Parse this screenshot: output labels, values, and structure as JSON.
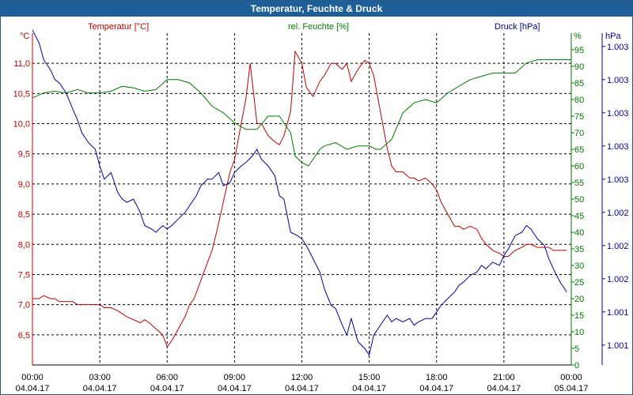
{
  "window": {
    "title": "Temperatur, Feuchte & Druck"
  },
  "colors": {
    "titlebar": "#1f5f99",
    "temperature": "#c00000",
    "humidity": "#007a00",
    "pressure": "#000099",
    "grid": "#000000"
  },
  "chart_data": {
    "type": "line",
    "title": "Temperatur, Feuchte & Druck",
    "grid": true,
    "x_labels": [
      {
        "time": "00:00",
        "date": "04.04.17"
      },
      {
        "time": "03:00",
        "date": "04.04.17"
      },
      {
        "time": "06:00",
        "date": "04.04.17"
      },
      {
        "time": "09:00",
        "date": "04.04.17"
      },
      {
        "time": "12:00",
        "date": "04.04.17"
      },
      {
        "time": "15:00",
        "date": "04.04.17"
      },
      {
        "time": "18:00",
        "date": "04.04.17"
      },
      {
        "time": "21:00",
        "date": "04.04.17"
      },
      {
        "time": "00:00",
        "date": "05.04.17"
      }
    ],
    "x_range_hours": [
      0,
      24
    ],
    "axes": {
      "left": {
        "unit": "°C",
        "label": "Temperatur [°C]",
        "range": [
          6.0,
          11.5
        ],
        "ticks": [
          6.5,
          7.0,
          7.5,
          8.0,
          8.5,
          9.0,
          9.5,
          10.0,
          10.5,
          11.0
        ],
        "tick_labels": [
          "6,5",
          "7,0",
          "7,5",
          "8,0",
          "8,5",
          "9,0",
          "9,5",
          "10,0",
          "10,5",
          "11,0"
        ]
      },
      "mid": {
        "unit": "%",
        "label": "rel. Feuchte [%]",
        "range": [
          0,
          100
        ],
        "ticks": [
          0,
          5,
          10,
          15,
          20,
          25,
          30,
          35,
          40,
          45,
          50,
          55,
          60,
          65,
          70,
          75,
          80,
          85,
          90,
          95
        ],
        "tick_labels": [
          "0",
          "5",
          "10",
          "15",
          "20",
          "25",
          "30",
          "35",
          "40",
          "45",
          "50",
          "55",
          "60",
          "65",
          "70",
          "75",
          "80",
          "85",
          "90",
          "95"
        ]
      },
      "right": {
        "unit": "hPa",
        "label": "Druck [hPa]",
        "range": [
          0,
          10
        ],
        "ticks": [
          0.6,
          1.6,
          2.6,
          3.6,
          4.6,
          5.6,
          6.6,
          7.6,
          8.6,
          9.6
        ],
        "tick_labels": [
          "1.001",
          "1.001",
          "1.002",
          "1.002",
          "1.002",
          "1.003",
          "1.003",
          "1.003",
          "1.003",
          "1.003"
        ]
      }
    },
    "series": [
      {
        "name": "Temperatur [°C]",
        "axis": "left",
        "color": "#c00000",
        "x": [
          0.0,
          0.3,
          0.5,
          0.8,
          1.0,
          1.2,
          1.5,
          1.8,
          2.0,
          2.2,
          2.5,
          2.8,
          3.0,
          3.2,
          3.5,
          3.8,
          4.0,
          4.2,
          4.5,
          4.8,
          5.0,
          5.2,
          5.5,
          5.8,
          6.0,
          6.2,
          6.5,
          6.8,
          7.0,
          7.2,
          7.5,
          7.8,
          8.0,
          8.2,
          8.5,
          8.8,
          9.0,
          9.2,
          9.5,
          9.7,
          10.0,
          10.2,
          10.5,
          10.8,
          11.0,
          11.2,
          11.5,
          11.7,
          12.0,
          12.2,
          12.5,
          12.8,
          13.0,
          13.3,
          13.5,
          13.8,
          14.0,
          14.2,
          14.5,
          14.8,
          15.0,
          15.2,
          15.5,
          15.8,
          16.0,
          16.2,
          16.5,
          16.8,
          17.0,
          17.2,
          17.5,
          17.8,
          18.0,
          18.2,
          18.5,
          18.8,
          19.0,
          19.2,
          19.5,
          19.8,
          20.0,
          20.2,
          20.5,
          20.8,
          21.0,
          21.2,
          21.5,
          21.8,
          22.0,
          22.2,
          22.5,
          22.8,
          23.0,
          23.2,
          23.5,
          23.8
        ],
        "y": [
          7.1,
          7.1,
          7.15,
          7.1,
          7.1,
          7.05,
          7.05,
          7.05,
          7.0,
          7.0,
          7.0,
          7.0,
          7.0,
          6.95,
          6.95,
          6.9,
          6.85,
          6.8,
          6.75,
          6.7,
          6.75,
          6.7,
          6.6,
          6.5,
          6.3,
          6.4,
          6.6,
          6.8,
          7.0,
          7.1,
          7.4,
          7.7,
          7.9,
          8.2,
          8.7,
          9.2,
          9.4,
          9.8,
          10.4,
          11.0,
          10.0,
          10.0,
          9.8,
          9.7,
          9.65,
          9.8,
          10.2,
          11.2,
          11.0,
          10.6,
          10.45,
          10.7,
          10.8,
          11.0,
          11.0,
          10.9,
          11.0,
          10.7,
          10.9,
          11.05,
          11.0,
          10.8,
          10.2,
          9.6,
          9.3,
          9.2,
          9.2,
          9.1,
          9.1,
          9.05,
          9.1,
          9.0,
          8.9,
          8.7,
          8.5,
          8.3,
          8.3,
          8.25,
          8.3,
          8.25,
          8.1,
          8.0,
          7.9,
          7.85,
          7.8,
          7.8,
          7.9,
          7.95,
          8.0,
          8.0,
          7.95,
          7.95,
          7.95,
          7.9,
          7.9,
          7.9
        ]
      },
      {
        "name": "rel. Feuchte [%]",
        "axis": "mid",
        "color": "#007a00",
        "x": [
          0.0,
          0.5,
          1.0,
          1.5,
          2.0,
          2.5,
          3.0,
          3.5,
          4.0,
          4.5,
          5.0,
          5.5,
          6.0,
          6.5,
          7.0,
          7.5,
          8.0,
          8.5,
          9.0,
          9.5,
          10.0,
          10.5,
          11.0,
          11.3,
          11.5,
          11.7,
          12.0,
          12.3,
          12.5,
          12.8,
          13.0,
          13.5,
          14.0,
          14.5,
          15.0,
          15.3,
          15.5,
          16.0,
          16.5,
          17.0,
          17.5,
          18.0,
          18.5,
          19.0,
          19.5,
          20.0,
          20.5,
          21.0,
          21.5,
          22.0,
          22.5,
          23.0,
          23.5,
          24.0
        ],
        "y": [
          80.5,
          82,
          82.5,
          82,
          83,
          82,
          82,
          82.5,
          84,
          83.5,
          82.5,
          83,
          86,
          86,
          85,
          82,
          78,
          76,
          73,
          71,
          71,
          75,
          75,
          72,
          70,
          63,
          61,
          60,
          62,
          65,
          66,
          67,
          65,
          66,
          66,
          65,
          65,
          68,
          76,
          79,
          80,
          79,
          82,
          84,
          86,
          87,
          88,
          88,
          88,
          91,
          92,
          92,
          92,
          92
        ]
      },
      {
        "name": "Druck [hPa]",
        "axis": "right",
        "color": "#000099",
        "x": [
          0.0,
          0.3,
          0.5,
          0.8,
          1.0,
          1.2,
          1.5,
          1.8,
          2.0,
          2.2,
          2.5,
          2.8,
          3.0,
          3.2,
          3.5,
          3.8,
          4.0,
          4.2,
          4.5,
          4.8,
          5.0,
          5.3,
          5.5,
          5.8,
          6.0,
          6.2,
          6.5,
          6.8,
          7.0,
          7.3,
          7.5,
          7.8,
          8.0,
          8.3,
          8.5,
          8.8,
          9.0,
          9.3,
          9.5,
          9.8,
          10.0,
          10.2,
          10.5,
          10.8,
          11.0,
          11.2,
          11.5,
          11.8,
          12.0,
          12.2,
          12.5,
          12.8,
          13.0,
          13.3,
          13.5,
          13.8,
          14.0,
          14.2,
          14.5,
          14.8,
          15.0,
          15.2,
          15.5,
          15.8,
          16.0,
          16.2,
          16.5,
          16.8,
          17.0,
          17.2,
          17.5,
          17.8,
          18.0,
          18.2,
          18.5,
          18.8,
          19.0,
          19.2,
          19.5,
          19.8,
          20.0,
          20.2,
          20.5,
          20.8,
          21.0,
          21.2,
          21.5,
          21.8,
          22.0,
          22.2,
          22.5,
          22.8,
          23.0,
          23.2,
          23.5,
          23.8
        ],
        "y": [
          10.1,
          9.7,
          9.2,
          8.9,
          8.6,
          8.5,
          8.2,
          7.7,
          7.4,
          7.0,
          6.7,
          6.5,
          6.0,
          5.6,
          5.8,
          5.2,
          5.0,
          4.9,
          5.0,
          4.6,
          4.2,
          4.1,
          4.0,
          4.2,
          4.1,
          4.2,
          4.4,
          4.6,
          4.8,
          5.1,
          5.4,
          5.6,
          5.6,
          5.8,
          5.4,
          5.5,
          5.8,
          6.0,
          6.1,
          6.3,
          6.5,
          6.2,
          6.0,
          5.7,
          5.1,
          5.0,
          4.0,
          3.9,
          3.8,
          3.6,
          3.2,
          2.8,
          2.3,
          1.8,
          1.7,
          1.2,
          0.9,
          1.4,
          0.7,
          0.5,
          0.3,
          0.9,
          1.2,
          1.5,
          1.3,
          1.4,
          1.3,
          1.4,
          1.2,
          1.3,
          1.4,
          1.4,
          1.6,
          1.8,
          2.0,
          2.2,
          2.4,
          2.5,
          2.7,
          2.8,
          3.0,
          2.9,
          3.1,
          3.0,
          3.3,
          3.5,
          3.9,
          4.0,
          4.2,
          4.1,
          3.8,
          3.6,
          3.2,
          2.9,
          2.5,
          2.2
        ]
      }
    ]
  }
}
